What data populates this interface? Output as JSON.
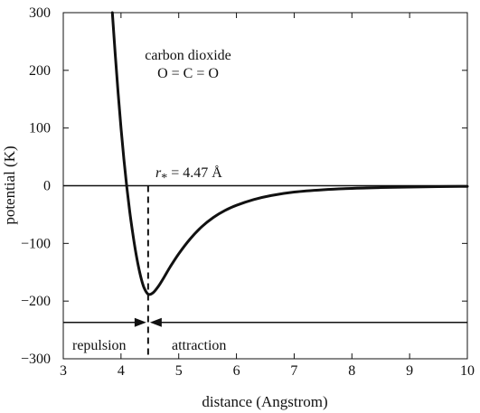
{
  "chart_data": {
    "type": "line",
    "title": "",
    "xlabel": "distance (Angstrom)",
    "ylabel": "potential (K)",
    "xlim": [
      3,
      10
    ],
    "ylim": [
      -300,
      300
    ],
    "x_ticks": [
      3,
      4,
      5,
      6,
      7,
      8,
      9,
      10
    ],
    "y_ticks": [
      300,
      200,
      100,
      0,
      -100,
      -200,
      -300
    ],
    "y_tick_labels": [
      "300",
      "200",
      "100",
      "0",
      "−100",
      "−200",
      "−300"
    ],
    "grid": false,
    "series": [
      {
        "x": [
          3.85,
          3.9,
          3.95,
          4.0,
          4.05,
          4.1,
          4.15,
          4.2,
          4.25,
          4.3,
          4.35,
          4.4,
          4.47,
          4.55,
          4.65,
          4.75,
          4.85,
          5.0,
          5.2,
          5.4,
          5.6,
          5.8,
          6.0,
          6.3,
          6.6,
          7.0,
          7.5,
          8.0,
          8.5,
          9.0,
          9.5,
          10.0
        ],
        "y": [
          300,
          228,
          161,
          100,
          46,
          -2,
          -44,
          -80,
          -112,
          -139,
          -161,
          -177,
          -188,
          -186,
          -174,
          -158,
          -141,
          -118,
          -92,
          -71,
          -55,
          -43,
          -34,
          -24,
          -17,
          -11,
          -7,
          -4.6,
          -3.2,
          -2.3,
          -1.6,
          -1.1
        ],
        "color": "#111111"
      }
    ],
    "annotations": {
      "compound": "carbon dioxide",
      "formula": "O = C = O",
      "r_symbol": "r",
      "r_subscript": "*",
      "r_value": " = 4.47 Å",
      "repulsion": "repulsion",
      "attraction": "attraction",
      "r_star": 4.47,
      "arrow_y": -237
    }
  }
}
